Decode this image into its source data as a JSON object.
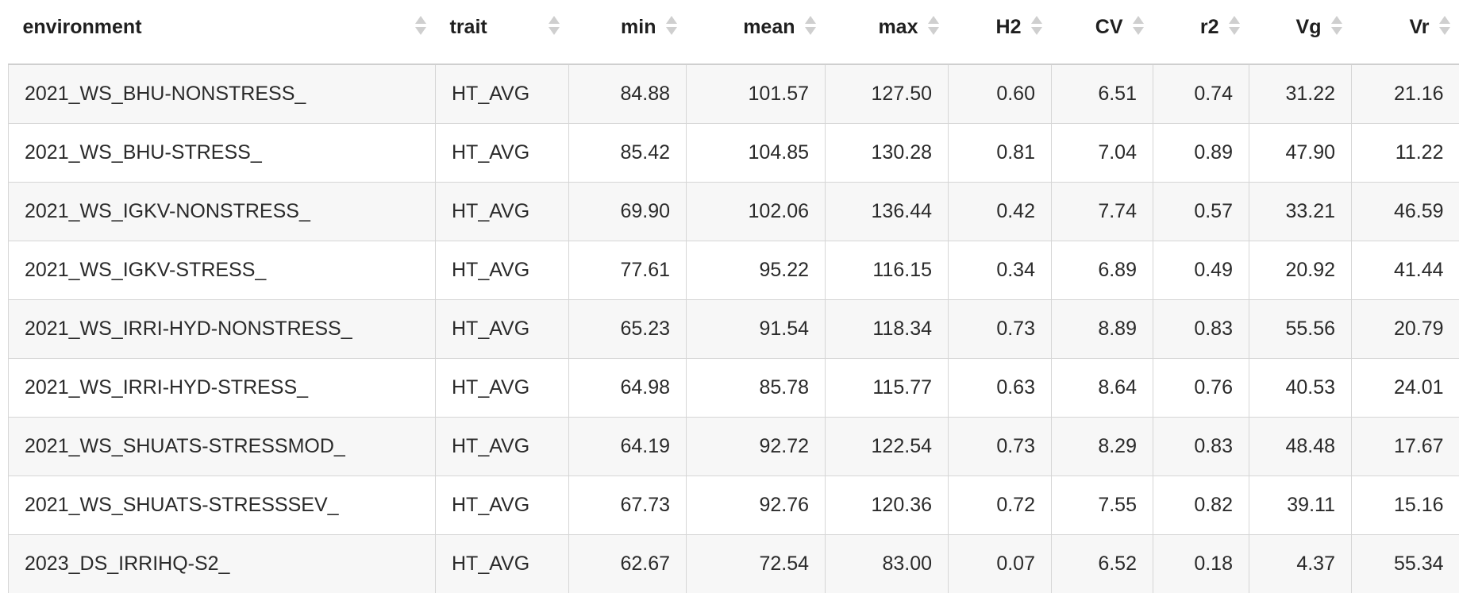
{
  "table": {
    "columns": [
      {
        "key": "environment",
        "label": "environment",
        "align": "left"
      },
      {
        "key": "trait",
        "label": "trait",
        "align": "left"
      },
      {
        "key": "min",
        "label": "min",
        "align": "right"
      },
      {
        "key": "mean",
        "label": "mean",
        "align": "right"
      },
      {
        "key": "max",
        "label": "max",
        "align": "right"
      },
      {
        "key": "h2",
        "label": "H2",
        "align": "right"
      },
      {
        "key": "cv",
        "label": "CV",
        "align": "right"
      },
      {
        "key": "r2",
        "label": "r2",
        "align": "right"
      },
      {
        "key": "vg",
        "label": "Vg",
        "align": "right"
      },
      {
        "key": "vr",
        "label": "Vr",
        "align": "right"
      }
    ],
    "rows": [
      [
        "2021_WS_BHU-NONSTRESS_",
        "HT_AVG",
        "84.88",
        "101.57",
        "127.50",
        "0.60",
        "6.51",
        "0.74",
        "31.22",
        "21.16"
      ],
      [
        "2021_WS_BHU-STRESS_",
        "HT_AVG",
        "85.42",
        "104.85",
        "130.28",
        "0.81",
        "7.04",
        "0.89",
        "47.90",
        "11.22"
      ],
      [
        "2021_WS_IGKV-NONSTRESS_",
        "HT_AVG",
        "69.90",
        "102.06",
        "136.44",
        "0.42",
        "7.74",
        "0.57",
        "33.21",
        "46.59"
      ],
      [
        "2021_WS_IGKV-STRESS_",
        "HT_AVG",
        "77.61",
        "95.22",
        "116.15",
        "0.34",
        "6.89",
        "0.49",
        "20.92",
        "41.44"
      ],
      [
        "2021_WS_IRRI-HYD-NONSTRESS_",
        "HT_AVG",
        "65.23",
        "91.54",
        "118.34",
        "0.73",
        "8.89",
        "0.83",
        "55.56",
        "20.79"
      ],
      [
        "2021_WS_IRRI-HYD-STRESS_",
        "HT_AVG",
        "64.98",
        "85.78",
        "115.77",
        "0.63",
        "8.64",
        "0.76",
        "40.53",
        "24.01"
      ],
      [
        "2021_WS_SHUATS-STRESSMOD_",
        "HT_AVG",
        "64.19",
        "92.72",
        "122.54",
        "0.73",
        "8.29",
        "0.83",
        "48.48",
        "17.67"
      ],
      [
        "2021_WS_SHUATS-STRESSSEV_",
        "HT_AVG",
        "67.73",
        "92.76",
        "120.36",
        "0.72",
        "7.55",
        "0.82",
        "39.11",
        "15.16"
      ],
      [
        "2023_DS_IRRIHQ-S2_",
        "HT_AVG",
        "62.67",
        "72.54",
        "83.00",
        "0.07",
        "6.52",
        "0.18",
        "4.37",
        "55.34"
      ]
    ]
  }
}
